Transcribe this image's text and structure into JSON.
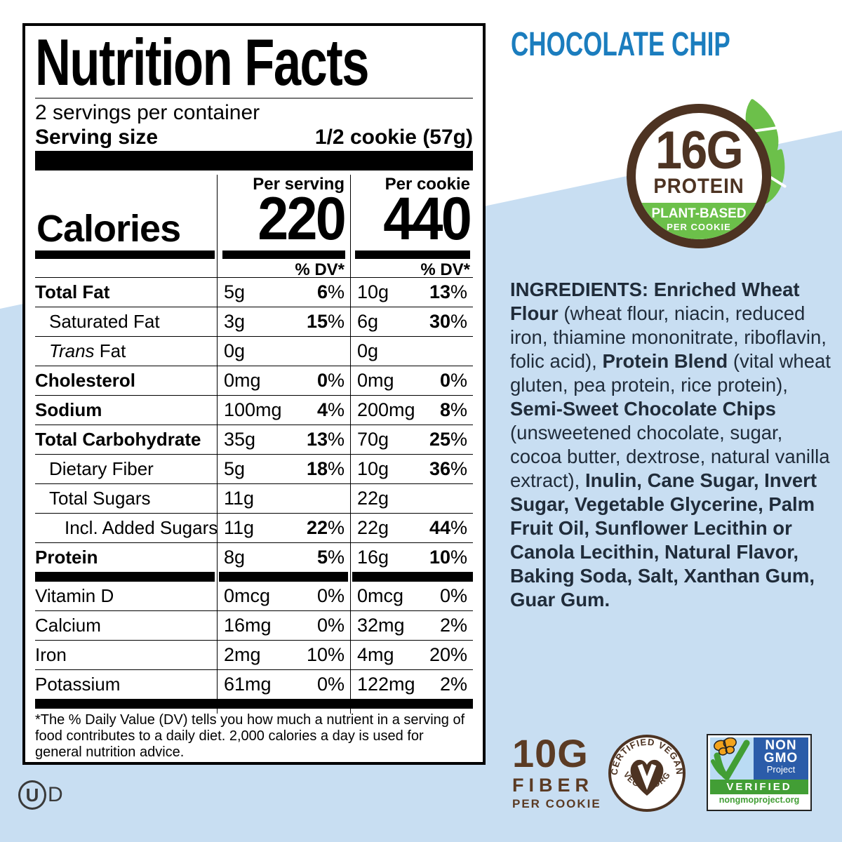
{
  "colors": {
    "accent_blue": "#1b7dbe",
    "background_blue": "#c8def2",
    "brown": "#4d3322",
    "leaf_green": "#6cc04a",
    "nongmo_blue": "#2b5ca9",
    "nongmo_green": "#429e35",
    "ingredients_ink": "#202c3a"
  },
  "product": {
    "flavor_title": "CHOCOLATE CHIP"
  },
  "protein_badge": {
    "amount": "16G",
    "label": "PROTEIN",
    "band_line1": "PLANT-BASED",
    "band_line2": "PER COOKIE"
  },
  "nutrition_facts": {
    "title": "Nutrition Facts",
    "servings_per_container": "2 servings per container",
    "serving_size_label": "Serving size",
    "serving_size_value": "1/2 cookie (57g)",
    "per_serving_header": "Per serving",
    "per_cookie_header": "Per cookie",
    "calories_label": "Calories",
    "calories_per_serving": "220",
    "calories_per_cookie": "440",
    "dv_header": "% DV*",
    "dv_suffix": "%",
    "rows": [
      {
        "name": "Total Fat",
        "bold": true,
        "indent": 0,
        "s_amt": "5g",
        "s_dv": "6",
        "c_amt": "10g",
        "c_dv": "13"
      },
      {
        "name": "Saturated Fat",
        "bold": false,
        "indent": 1,
        "s_amt": "3g",
        "s_dv": "15",
        "c_amt": "6g",
        "c_dv": "30"
      },
      {
        "name": "Fat",
        "italic_prefix": "Trans",
        "bold": false,
        "indent": 1,
        "s_amt": "0g",
        "s_dv": "",
        "c_amt": "0g",
        "c_dv": ""
      },
      {
        "name": "Cholesterol",
        "bold": true,
        "indent": 0,
        "s_amt": "0mg",
        "s_dv": "0",
        "c_amt": "0mg",
        "c_dv": "0"
      },
      {
        "name": "Sodium",
        "bold": true,
        "indent": 0,
        "s_amt": "100mg",
        "s_dv": "4",
        "c_amt": "200mg",
        "c_dv": "8"
      },
      {
        "name": "Total Carbohydrate",
        "bold": true,
        "indent": 0,
        "s_amt": "35g",
        "s_dv": "13",
        "c_amt": "70g",
        "c_dv": "25"
      },
      {
        "name": "Dietary Fiber",
        "bold": false,
        "indent": 1,
        "s_amt": "5g",
        "s_dv": "18",
        "c_amt": "10g",
        "c_dv": "36"
      },
      {
        "name": "Total Sugars",
        "bold": false,
        "indent": 1,
        "s_amt": "11g",
        "s_dv": "",
        "c_amt": "22g",
        "c_dv": ""
      },
      {
        "name": "Incl. Added Sugars",
        "bold": false,
        "indent": 2,
        "s_amt": "11g",
        "s_dv": "22",
        "c_amt": "22g",
        "c_dv": "44"
      },
      {
        "name": "Protein",
        "bold": true,
        "indent": 0,
        "s_amt": "8g",
        "s_dv": "5",
        "c_amt": "16g",
        "c_dv": "10"
      }
    ],
    "vitamin_rows": [
      {
        "name": "Vitamin D",
        "s_amt": "0mcg",
        "s_dv": "0",
        "c_amt": "0mcg",
        "c_dv": "0"
      },
      {
        "name": "Calcium",
        "s_amt": "16mg",
        "s_dv": "0",
        "c_amt": "32mg",
        "c_dv": "2"
      },
      {
        "name": "Iron",
        "s_amt": "2mg",
        "s_dv": "10",
        "c_amt": "4mg",
        "c_dv": "20"
      },
      {
        "name": "Potassium",
        "s_amt": "61mg",
        "s_dv": "0",
        "c_amt": "122mg",
        "c_dv": "2"
      }
    ],
    "footnote": "*The % Daily Value (DV) tells you how much a nutrient in a serving of food contributes to a daily diet. 2,000 calories a day is used for general nutrition advice."
  },
  "ingredients": {
    "segments": [
      {
        "bold": true,
        "text": "INGREDIENTS: Enriched Wheat Flour"
      },
      {
        "bold": false,
        "text": " (wheat flour, niacin, reduced iron, thiamine mononitrate, riboflavin, folic acid), "
      },
      {
        "bold": true,
        "text": "Protein Blend"
      },
      {
        "bold": false,
        "text": " (vital wheat gluten, pea protein, rice protein), "
      },
      {
        "bold": true,
        "text": "Semi-Sweet Chocolate Chips"
      },
      {
        "bold": false,
        "text": " (unsweetened chocolate, sugar, cocoa butter, dextrose, natural vanilla extract), "
      },
      {
        "bold": true,
        "text": "Inulin, Cane Sugar, Invert Sugar, Vegetable Glycerine, Palm Fruit Oil, Sunflower Lecithin or Canola Lecithin, Natural Flavor, Baking Soda, Salt, Xanthan Gum, Guar Gum."
      }
    ]
  },
  "badges": {
    "fiber": {
      "amount": "10G",
      "label": "FIBER",
      "sub": "PER COOKIE"
    },
    "vegan": {
      "arc_top": "CERTIFIED VEGAN",
      "arc_bottom": "VEGAN.ORG"
    },
    "non_gmo": {
      "line1": "NON",
      "line2": "GMO",
      "line3": "Project",
      "verified": "VERIFIED",
      "url": "nongmoproject.org"
    }
  },
  "kosher": {
    "circled": "U",
    "suffix": "D"
  }
}
